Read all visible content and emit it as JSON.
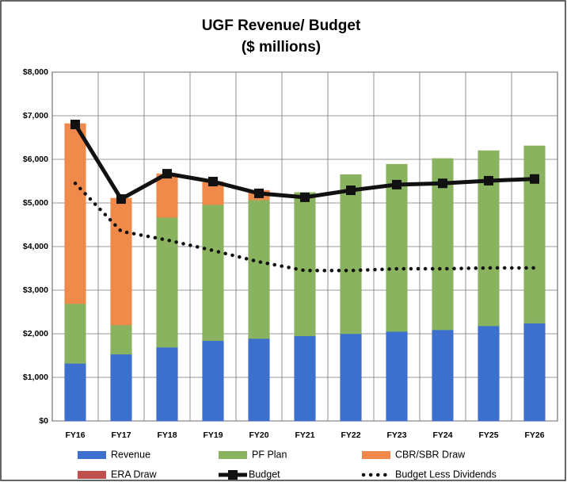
{
  "chart_data": {
    "type": "bar",
    "title": "UGF Revenue/ Budget",
    "subtitle": "($ millions)",
    "categories": [
      "FY16",
      "FY17",
      "FY18",
      "FY19",
      "FY20",
      "FY21",
      "FY22",
      "FY23",
      "FY24",
      "FY25",
      "FY26"
    ],
    "series": [
      {
        "name": "Revenue",
        "style": "bar",
        "color": "#3d6fcf",
        "values": [
          1320,
          1530,
          1690,
          1840,
          1890,
          1950,
          2000,
          2050,
          2090,
          2180,
          2240
        ]
      },
      {
        "name": "PF Plan",
        "style": "bar",
        "color": "#89b35e",
        "values": [
          1370,
          670,
          2980,
          3120,
          3180,
          3290,
          3650,
          3840,
          3930,
          4020,
          4070
        ]
      },
      {
        "name": "CBR/SBR Draw",
        "style": "bar",
        "color": "#f08a4b",
        "values": [
          4130,
          2910,
          1000,
          530,
          220,
          0,
          0,
          0,
          0,
          0,
          0
        ]
      },
      {
        "name": "ERA Draw",
        "style": "bar",
        "color": "#c0504d",
        "values": [
          0,
          0,
          0,
          0,
          0,
          0,
          0,
          0,
          0,
          0,
          0
        ]
      },
      {
        "name": "Budget",
        "style": "line",
        "color": "#111111",
        "values": [
          6800,
          5090,
          5670,
          5490,
          5220,
          5130,
          5290,
          5420,
          5450,
          5510,
          5550
        ]
      },
      {
        "name": "Budget Less Dividends",
        "style": "dotted",
        "color": "#111111",
        "values": [
          5450,
          4350,
          4150,
          3910,
          3650,
          3450,
          3450,
          3490,
          3490,
          3510,
          3510
        ]
      }
    ],
    "ylim": [
      0,
      8000
    ],
    "yticks": [
      {
        "value": 0,
        "label": "$0"
      },
      {
        "value": 1000,
        "label": "$1,000"
      },
      {
        "value": 2000,
        "label": "$2,000"
      },
      {
        "value": 3000,
        "label": "$3,000"
      },
      {
        "value": 4000,
        "label": "$4,000"
      },
      {
        "value": 5000,
        "label": "$5,000"
      },
      {
        "value": 6000,
        "label": "$6,000"
      },
      {
        "value": 7000,
        "label": "$7,000"
      },
      {
        "value": 8000,
        "label": "$8,000"
      }
    ],
    "grid": true
  }
}
